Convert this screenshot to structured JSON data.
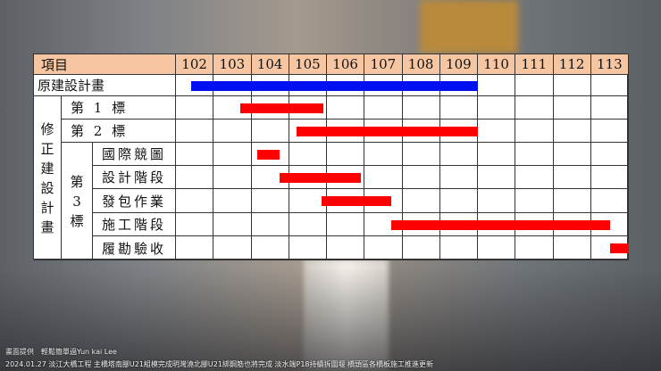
{
  "chart_data": {
    "type": "gantt",
    "header_label": "項目",
    "years": [
      "102",
      "103",
      "104",
      "105",
      "106",
      "107",
      "108",
      "109",
      "110",
      "111",
      "112",
      "113"
    ],
    "original_plan": {
      "label": "原建設計畫",
      "start": 102.4,
      "end": 110.0,
      "color": "#0010f0"
    },
    "revised_group_label": "修正建設計畫",
    "lot3_label": "第\n3\n標",
    "tasks": [
      {
        "label": "第 1 標",
        "start": 103.7,
        "end": 105.9
      },
      {
        "label": "第 2 標",
        "start": 105.2,
        "end": 110.0
      },
      {
        "label": "國際競圖",
        "start": 104.15,
        "end": 104.75
      },
      {
        "label": "設計階段",
        "start": 104.75,
        "end": 106.9
      },
      {
        "label": "發包作業",
        "start": 105.85,
        "end": 107.7
      },
      {
        "label": "施工階段",
        "start": 107.7,
        "end": 113.5
      },
      {
        "label": "履勘驗收",
        "start": 113.5,
        "end": 114.0
      }
    ],
    "task_color": "#ff0000",
    "header_color": "#f6c6a2"
  },
  "captions": {
    "credit": "畫面提供　輕鬆簡單過Yun kai Lee",
    "news": "2024.01.27 淡江大橋工程 主橋塔南腳U21組模完成明灣澆北腳U21綁鋼筋也將完成 淡水端P18持續拆圍堰 橋頭區各橋板施工推進更新"
  }
}
